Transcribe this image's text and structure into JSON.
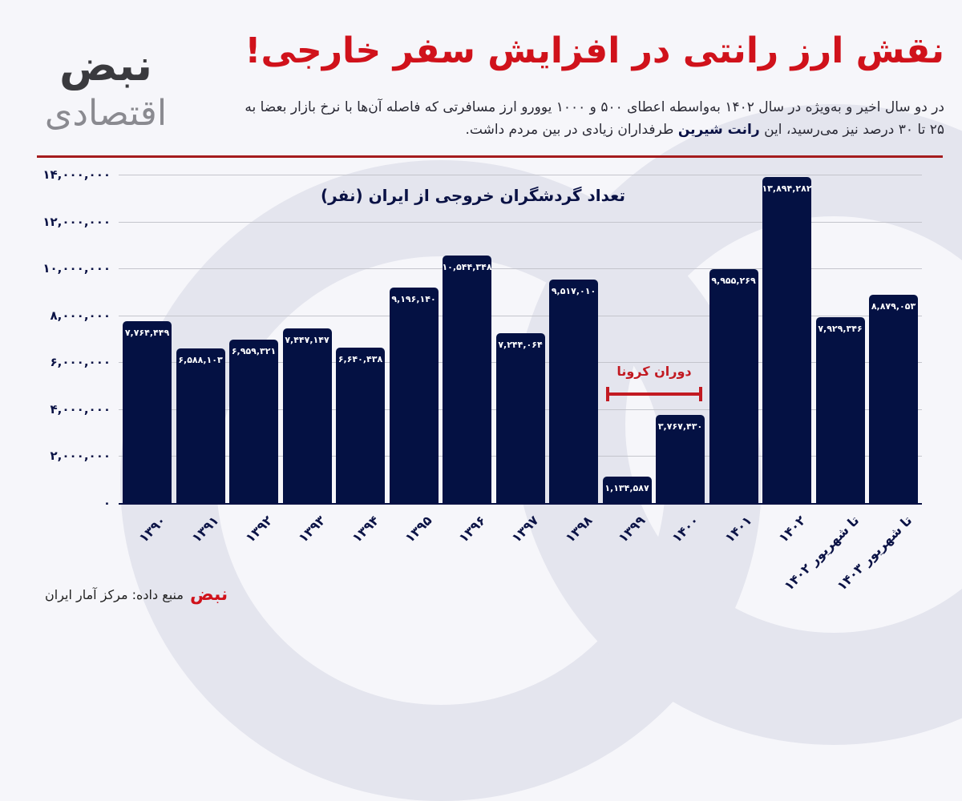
{
  "header": {
    "title": "نقش ارز رانتی در افزایش سفر خارجی!",
    "subtitle_line1": "در دو سال اخیر و به‌ویژه در سال ۱۴۰۲ به‌واسطه اعطای ۵۰۰ و ۱۰۰۰ یوورو ارز مسافرتی که فاصله آن‌ها با نرخ بازار بعضا به",
    "subtitle_line2_pre": "۲۵ تا ۳۰ درصد نیز می‌رسید، این ",
    "subtitle_line2_bold": "رانت شیرین",
    "subtitle_line2_post": " طرفداران زیادی در بین مردم داشت."
  },
  "logo": {
    "top": "نبض",
    "bottom": "اقتصادی"
  },
  "annotation": {
    "corona_label": "دوران کرونا"
  },
  "footer": {
    "source": "منبع داده: مرکز آمار ایران",
    "source_logo": "نبض"
  },
  "colors": {
    "bar": "#041143",
    "title": "#d0121b",
    "accent_line": "#a51c1e",
    "annotation": "#c21a22"
  },
  "chart_data": {
    "type": "bar",
    "title": "تعداد گردشگران خروجی از ایران (نفر)",
    "xlabel": "",
    "ylabel": "",
    "ylim": [
      0,
      14000000
    ],
    "yticks": [
      0,
      2000000,
      4000000,
      6000000,
      8000000,
      10000000,
      12000000,
      14000000
    ],
    "ytick_labels": [
      "۰",
      "۲,۰۰۰,۰۰۰",
      "۴,۰۰۰,۰۰۰",
      "۶,۰۰۰,۰۰۰",
      "۸,۰۰۰,۰۰۰",
      "۱۰,۰۰۰,۰۰۰",
      "۱۲,۰۰۰,۰۰۰",
      "۱۴,۰۰۰,۰۰۰"
    ],
    "grid": true,
    "categories": [
      "۱۳۹۰",
      "۱۳۹۱",
      "۱۳۹۲",
      "۱۳۹۳",
      "۱۳۹۴",
      "۱۳۹۵",
      "۱۳۹۶",
      "۱۳۹۷",
      "۱۳۹۸",
      "۱۳۹۹",
      "۱۴۰۰",
      "۱۴۰۱",
      "۱۴۰۲",
      "تا شهریور ۱۴۰۲",
      "تا شهریور ۱۴۰۳"
    ],
    "values": [
      7764449,
      6588103,
      6959321,
      7447147,
      6640438,
      9196140,
      10544348,
      7244064,
      9517010,
      1134587,
      3767430,
      9955269,
      13894282,
      7929346,
      8879053
    ],
    "value_labels": [
      "۷,۷۶۴,۴۴۹",
      "۶,۵۸۸,۱۰۳",
      "۶,۹۵۹,۳۲۱",
      "۷,۴۴۷,۱۴۷",
      "۶,۶۴۰,۴۳۸",
      "۹,۱۹۶,۱۴۰",
      "۱۰,۵۴۴,۳۴۸",
      "۷,۲۴۴,۰۶۴",
      "۹,۵۱۷,۰۱۰",
      "۱,۱۳۴,۵۸۷",
      "۳,۷۶۷,۴۳۰",
      "۹,۹۵۵,۲۶۹",
      "۱۳,۸۹۴,۲۸۲",
      "۷,۹۲۹,۳۴۶",
      "۸,۸۷۹,۰۵۳"
    ],
    "annotations": [
      {
        "text": "دوران کرونا",
        "span": [
          "۱۳۹۹",
          "۱۴۰۰"
        ]
      }
    ]
  }
}
